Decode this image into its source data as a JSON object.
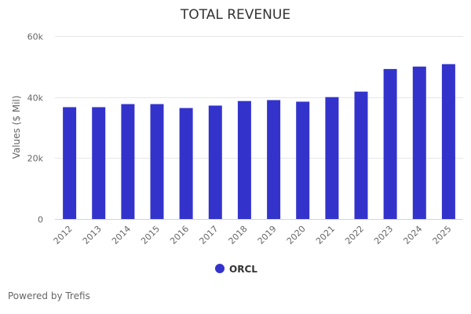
{
  "chart_data": {
    "type": "bar",
    "title": "TOTAL REVENUE",
    "xlabel": "",
    "ylabel": "Values ($ Mil)",
    "ylim": [
      0,
      60000
    ],
    "yticks": [
      0,
      20000,
      40000,
      60000
    ],
    "ytick_labels": [
      "0",
      "20k",
      "40k",
      "60k"
    ],
    "grid": true,
    "legend_position": "bottom-center",
    "categories": [
      "2012",
      "2013",
      "2014",
      "2015",
      "2016",
      "2017",
      "2018",
      "2019",
      "2020",
      "2021",
      "2022",
      "2023",
      "2024",
      "2025"
    ],
    "series": [
      {
        "name": "ORCL",
        "color": "#3333cc",
        "values": [
          36700,
          36700,
          37700,
          37700,
          36400,
          37200,
          38700,
          39000,
          38500,
          40000,
          41800,
          49200,
          50000,
          50800
        ]
      }
    ]
  },
  "footer": {
    "credit": "Powered by Trefis"
  }
}
